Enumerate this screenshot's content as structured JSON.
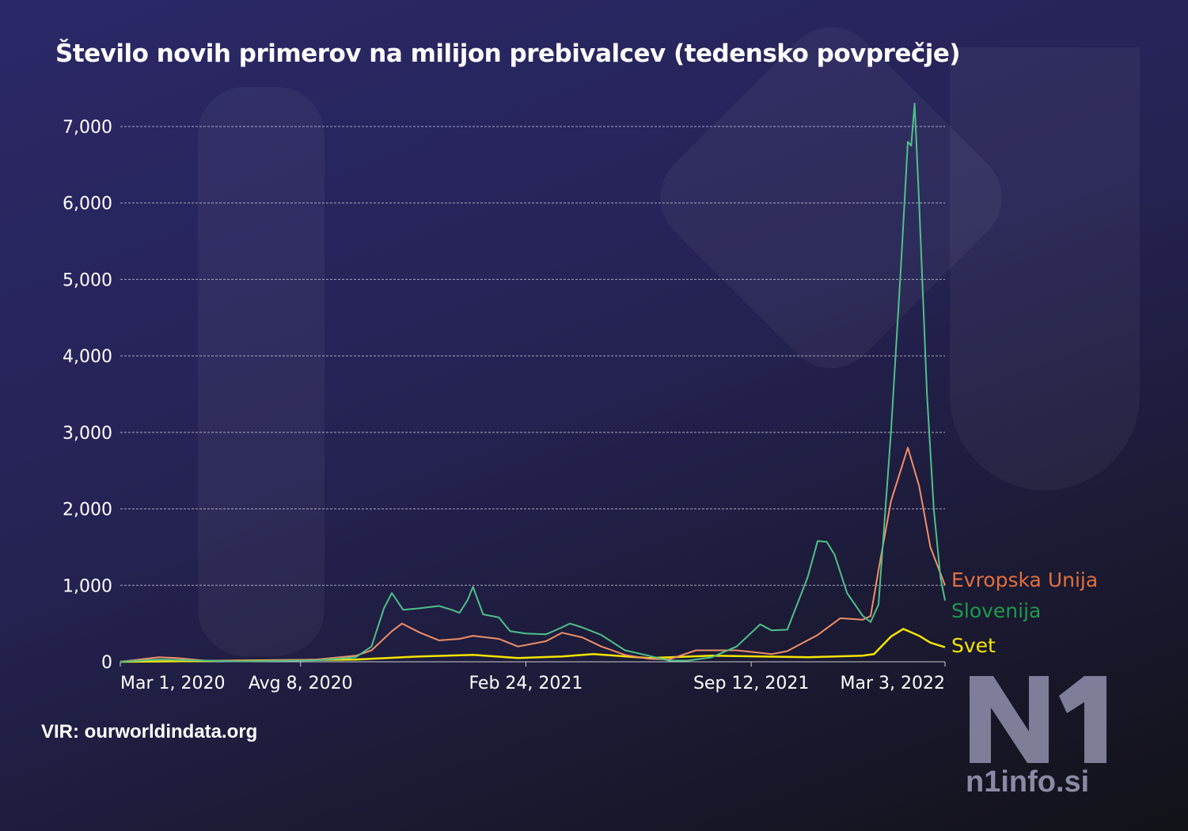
{
  "title": "Število novih primerov na milijon prebivalcev (tedensko povprečje)",
  "source": "VIR: ourworldindata.org",
  "brand": {
    "logo": "N1",
    "site": "n1info.si"
  },
  "chart_data": {
    "type": "line",
    "title": "Število novih primerov na milijon prebivalcev (tedensko povprečje)",
    "xlim": [
      "2020-03-01",
      "2022-03-03"
    ],
    "ylim": [
      0,
      7300
    ],
    "grid": true,
    "legend": "right-end labels",
    "yticks": [
      0,
      1000,
      2000,
      3000,
      4000,
      5000,
      6000,
      7000
    ],
    "ytick_labels": [
      "0",
      "1,000",
      "2,000",
      "3,000",
      "4,000",
      "5,000",
      "6,000",
      "7,000"
    ],
    "xticks": [
      "2020-03-01",
      "2020-08-08",
      "2021-02-24",
      "2021-09-12",
      "2022-03-03"
    ],
    "xtick_labels": [
      "Mar 1, 2020",
      "Avg 8, 2020",
      "Feb 24, 2021",
      "Sep 12, 2021",
      "Mar 3, 2022"
    ],
    "series": [
      {
        "name": "Slovenija",
        "color": "#4fc08a",
        "label_color": "#1e9a4c",
        "points": [
          [
            "2020-03-01",
            0
          ],
          [
            "2020-04-04",
            30
          ],
          [
            "2020-06-13",
            5
          ],
          [
            "2020-08-22",
            20
          ],
          [
            "2020-09-26",
            60
          ],
          [
            "2020-10-10",
            200
          ],
          [
            "2020-10-21",
            700
          ],
          [
            "2020-10-28",
            900
          ],
          [
            "2020-11-07",
            680
          ],
          [
            "2020-11-22",
            700
          ],
          [
            "2020-12-09",
            730
          ],
          [
            "2020-12-20",
            680
          ],
          [
            "2020-12-27",
            640
          ],
          [
            "2021-01-03",
            800
          ],
          [
            "2021-01-08",
            980
          ],
          [
            "2021-01-17",
            620
          ],
          [
            "2021-01-31",
            580
          ],
          [
            "2021-02-10",
            400
          ],
          [
            "2021-02-24",
            370
          ],
          [
            "2021-03-14",
            360
          ],
          [
            "2021-03-28",
            450
          ],
          [
            "2021-04-04",
            500
          ],
          [
            "2021-04-15",
            450
          ],
          [
            "2021-05-02",
            350
          ],
          [
            "2021-05-23",
            150
          ],
          [
            "2021-06-13",
            80
          ],
          [
            "2021-07-01",
            15
          ],
          [
            "2021-07-18",
            15
          ],
          [
            "2021-08-08",
            60
          ],
          [
            "2021-08-30",
            200
          ],
          [
            "2021-09-20",
            490
          ],
          [
            "2021-09-30",
            410
          ],
          [
            "2021-10-14",
            420
          ],
          [
            "2021-11-01",
            1100
          ],
          [
            "2021-11-10",
            1580
          ],
          [
            "2021-11-18",
            1570
          ],
          [
            "2021-11-25",
            1400
          ],
          [
            "2021-12-06",
            900
          ],
          [
            "2021-12-20",
            600
          ],
          [
            "2021-12-27",
            520
          ],
          [
            "2022-01-03",
            750
          ],
          [
            "2022-01-14",
            3000
          ],
          [
            "2022-01-23",
            5200
          ],
          [
            "2022-01-29",
            6800
          ],
          [
            "2022-02-01",
            6750
          ],
          [
            "2022-02-04",
            7300
          ],
          [
            "2022-02-08",
            6000
          ],
          [
            "2022-02-15",
            3500
          ],
          [
            "2022-02-21",
            2000
          ],
          [
            "2022-02-27",
            1100
          ],
          [
            "2022-03-03",
            800
          ]
        ]
      },
      {
        "name": "Evropska Unija",
        "color": "#f08f68",
        "label_color": "#e2703f",
        "points": [
          [
            "2020-03-01",
            0
          ],
          [
            "2020-04-04",
            60
          ],
          [
            "2020-04-20",
            50
          ],
          [
            "2020-05-15",
            15
          ],
          [
            "2020-07-01",
            15
          ],
          [
            "2020-08-22",
            30
          ],
          [
            "2020-09-26",
            80
          ],
          [
            "2020-10-10",
            150
          ],
          [
            "2020-10-28",
            400
          ],
          [
            "2020-11-06",
            500
          ],
          [
            "2020-11-22",
            380
          ],
          [
            "2020-12-09",
            280
          ],
          [
            "2020-12-27",
            300
          ],
          [
            "2021-01-08",
            340
          ],
          [
            "2021-01-31",
            300
          ],
          [
            "2021-02-17",
            200
          ],
          [
            "2021-03-14",
            270
          ],
          [
            "2021-03-28",
            380
          ],
          [
            "2021-04-15",
            320
          ],
          [
            "2021-05-02",
            200
          ],
          [
            "2021-05-23",
            90
          ],
          [
            "2021-06-13",
            40
          ],
          [
            "2021-07-01",
            30
          ],
          [
            "2021-07-25",
            150
          ],
          [
            "2021-08-30",
            150
          ],
          [
            "2021-09-30",
            100
          ],
          [
            "2021-10-14",
            140
          ],
          [
            "2021-11-10",
            350
          ],
          [
            "2021-11-30",
            570
          ],
          [
            "2021-12-20",
            550
          ],
          [
            "2021-12-27",
            600
          ],
          [
            "2022-01-03",
            1200
          ],
          [
            "2022-01-14",
            2100
          ],
          [
            "2022-01-29",
            2800
          ],
          [
            "2022-02-08",
            2300
          ],
          [
            "2022-02-18",
            1500
          ],
          [
            "2022-03-03",
            1000
          ]
        ]
      },
      {
        "name": "Svet",
        "color": "#f5e600",
        "label_color": "#f5e600",
        "points": [
          [
            "2020-03-01",
            0
          ],
          [
            "2020-06-13",
            15
          ],
          [
            "2020-09-26",
            30
          ],
          [
            "2020-11-22",
            70
          ],
          [
            "2021-01-08",
            90
          ],
          [
            "2021-02-17",
            50
          ],
          [
            "2021-03-28",
            70
          ],
          [
            "2021-04-25",
            100
          ],
          [
            "2021-06-13",
            50
          ],
          [
            "2021-08-08",
            80
          ],
          [
            "2021-09-20",
            70
          ],
          [
            "2021-11-01",
            60
          ],
          [
            "2021-12-20",
            80
          ],
          [
            "2021-12-30",
            100
          ],
          [
            "2022-01-14",
            330
          ],
          [
            "2022-01-25",
            430
          ],
          [
            "2022-02-08",
            340
          ],
          [
            "2022-02-18",
            250
          ],
          [
            "2022-03-03",
            190
          ]
        ]
      }
    ]
  }
}
